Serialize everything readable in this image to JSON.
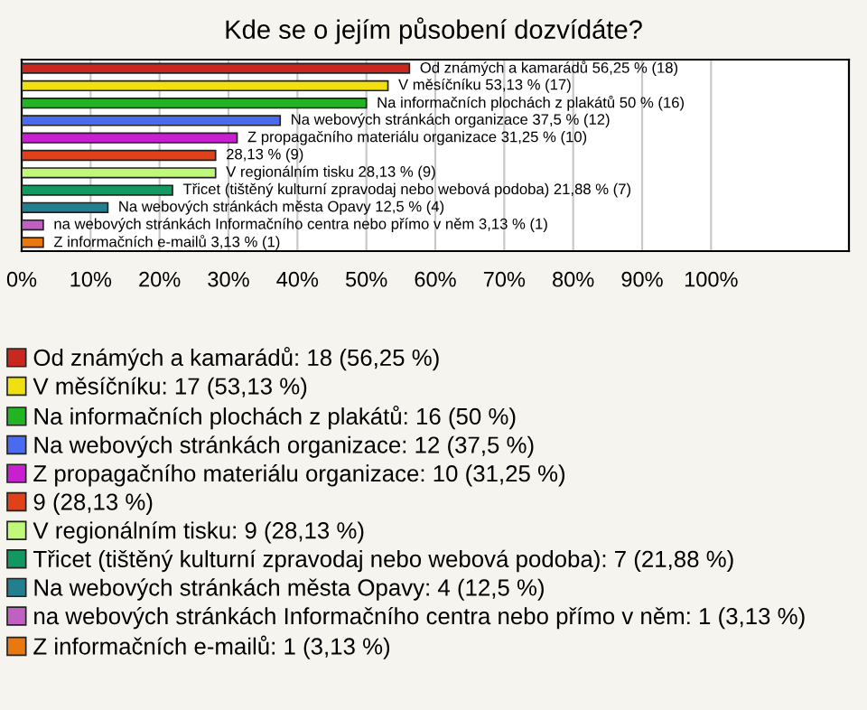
{
  "chart_data": {
    "type": "bar",
    "orientation": "horizontal",
    "title": "Kde se o jejím působení dozvídáte?",
    "categories": [
      null,
      null,
      null,
      null,
      null,
      null,
      null,
      null,
      null,
      null,
      null
    ],
    "series": [
      {
        "name": "Od známých a kamarádů: 18 (56,25 %)",
        "color": "#c8281e",
        "values": [
          56.25,
          null,
          null,
          null,
          null,
          null,
          null,
          null,
          null,
          null,
          null
        ],
        "value_labels": [
          "Od známých a kamarádů 56,25 % (18)",
          null,
          null,
          null,
          null,
          null,
          null,
          null,
          null,
          null,
          null
        ]
      },
      {
        "name": "V měsíčníku: 17 (53,13 %)",
        "color": "#f0e010",
        "values": [
          null,
          53.13,
          null,
          null,
          null,
          null,
          null,
          null,
          null,
          null,
          null
        ],
        "value_labels": [
          null,
          "V měsíčníku 53,13 % (17)",
          null,
          null,
          null,
          null,
          null,
          null,
          null,
          null,
          null
        ]
      },
      {
        "name": "Na informačních plochách z plakátů: 16 (50 %)",
        "color": "#22b422",
        "values": [
          null,
          null,
          50,
          null,
          null,
          null,
          null,
          null,
          null,
          null,
          null
        ],
        "value_labels": [
          null,
          null,
          "Na informačních plochách z plakátů 50 % (16)",
          null,
          null,
          null,
          null,
          null,
          null,
          null,
          null
        ]
      },
      {
        "name": "Na webových stránkách organizace: 12 (37,5 %)",
        "color": "#4a6af0",
        "values": [
          null,
          null,
          null,
          37.5,
          null,
          null,
          null,
          null,
          null,
          null,
          null
        ],
        "value_labels": [
          null,
          null,
          null,
          "Na webových stránkách organizace 37,5 % (12)",
          null,
          null,
          null,
          null,
          null,
          null,
          null
        ]
      },
      {
        "name": "Z propagačního materiálu organizace: 10 (31,25 %)",
        "color": "#c820d0",
        "values": [
          null,
          null,
          null,
          null,
          31.25,
          null,
          null,
          null,
          null,
          null,
          null
        ],
        "value_labels": [
          null,
          null,
          null,
          null,
          "Z propagačního materiálu organizace 31,25 % (10)",
          null,
          null,
          null,
          null,
          null,
          null
        ]
      },
      {
        "name": "9 (28,13 %)",
        "color": "#e0401a",
        "values": [
          null,
          null,
          null,
          null,
          null,
          28.13,
          null,
          null,
          null,
          null,
          null
        ],
        "value_labels": [
          null,
          null,
          null,
          null,
          null,
          "28,13 % (9)",
          null,
          null,
          null,
          null,
          null
        ]
      },
      {
        "name": "V regionálním tisku: 9 (28,13 %)",
        "color": "#c0f878",
        "values": [
          null,
          null,
          null,
          null,
          null,
          null,
          28.13,
          null,
          null,
          null,
          null
        ],
        "value_labels": [
          null,
          null,
          null,
          null,
          null,
          null,
          "V regionálním tisku 28,13 % (9)",
          null,
          null,
          null,
          null
        ]
      },
      {
        "name": "Třicet (tištěný kulturní zpravodaj nebo webová podoba): 7 (21,88 %)",
        "color": "#129860",
        "values": [
          null,
          null,
          null,
          null,
          null,
          null,
          null,
          21.88,
          null,
          null,
          null
        ],
        "value_labels": [
          null,
          null,
          null,
          null,
          null,
          null,
          null,
          "Třicet (tištěný kulturní zpravodaj nebo webová podoba) 21,88 % (7)",
          null,
          null,
          null
        ]
      },
      {
        "name": "Na webových stránkách města Opavy: 4 (12,5 %)",
        "color": "#208090",
        "values": [
          null,
          null,
          null,
          null,
          null,
          null,
          null,
          null,
          12.5,
          null,
          null
        ],
        "value_labels": [
          null,
          null,
          null,
          null,
          null,
          null,
          null,
          null,
          "Na webových stránkách města Opavy 12,5 % (4)",
          null,
          null
        ]
      },
      {
        "name": "na webových stránkách Informačního centra nebo přímo v něm: 1 (3,13 %)",
        "color": "#c060c0",
        "values": [
          null,
          null,
          null,
          null,
          null,
          null,
          null,
          null,
          null,
          3.13,
          null
        ],
        "value_labels": [
          null,
          null,
          null,
          null,
          null,
          null,
          null,
          null,
          null,
          "na webových stránkách Informačního centra nebo přímo v něm 3,13 % (1)",
          null
        ]
      },
      {
        "name": "Z informačních e-mailů: 1 (3,13 %)",
        "color": "#e87810",
        "values": [
          null,
          null,
          null,
          null,
          null,
          null,
          null,
          null,
          null,
          null,
          3.13
        ],
        "value_labels": [
          null,
          null,
          null,
          null,
          null,
          null,
          null,
          null,
          null,
          null,
          "Z informačních e-mailů 3,13 % (1)"
        ]
      }
    ],
    "xlim": [
      0,
      120
    ],
    "xticks": [
      {
        "value": 0,
        "label": "0%"
      },
      {
        "value": 10,
        "label": "10%"
      },
      {
        "value": 20,
        "label": "20%"
      },
      {
        "value": 30,
        "label": "30%"
      },
      {
        "value": 40,
        "label": "40%"
      },
      {
        "value": 50,
        "label": "50%"
      },
      {
        "value": 60,
        "label": "60%"
      },
      {
        "value": 70,
        "label": "70%"
      },
      {
        "value": 80,
        "label": "80%"
      },
      {
        "value": 90,
        "label": "90%"
      },
      {
        "value": 100,
        "label": "100%"
      }
    ],
    "grid": "x",
    "legend": "bottom"
  }
}
